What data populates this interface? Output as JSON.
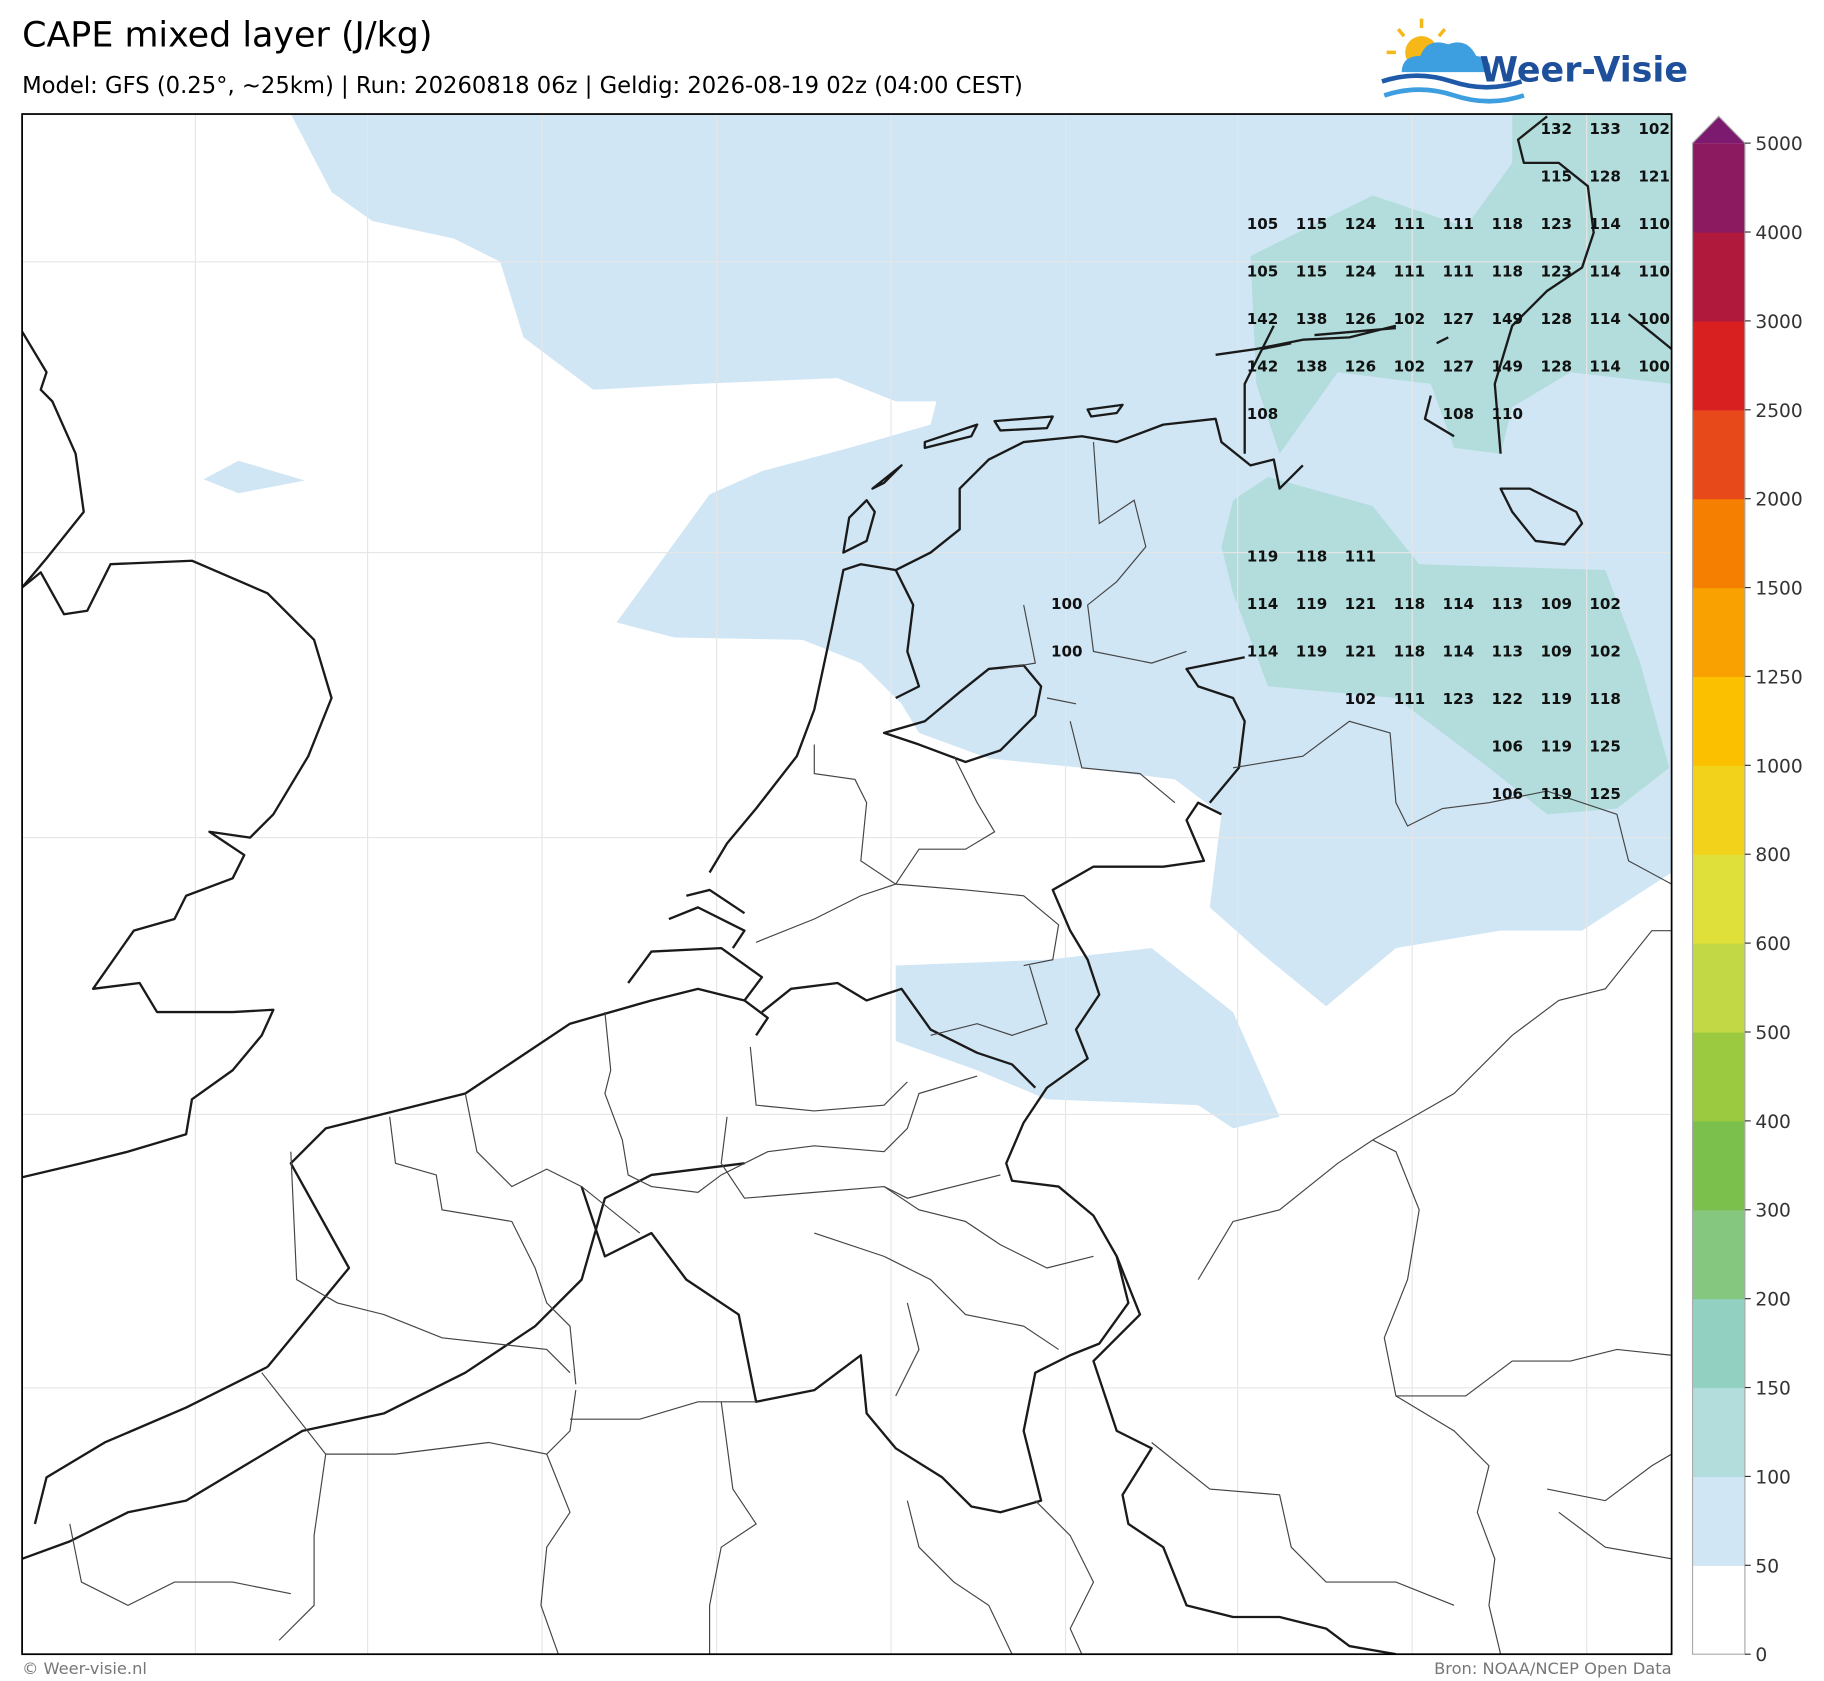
{
  "header": {
    "title": "CAPE mixed layer (J/kg)",
    "subtitle": "Model: GFS (0.25°, ~25km)  |  Run: 20260818 06z  |  Geldig: 2026-08-19 02z (04:00 CEST)"
  },
  "logo": {
    "text": "Weer-Visie"
  },
  "colorbar": {
    "levels": [
      0,
      50,
      100,
      150,
      200,
      300,
      400,
      500,
      600,
      800,
      1000,
      1250,
      1500,
      2000,
      2500,
      3000,
      4000,
      5000
    ],
    "colors": [
      "#ffffff",
      "#d0e6f5",
      "#b2dddc",
      "#92d1c2",
      "#86c780",
      "#7bbf4c",
      "#9bc93f",
      "#c2d945",
      "#dfe03a",
      "#f2d21b",
      "#fbc100",
      "#f8a100",
      "#f57f00",
      "#e7491a",
      "#d7201f",
      "#b0193b",
      "#8c1a60"
    ],
    "extend_color": "#7b1a6e"
  },
  "value_labels": {
    "rows": [
      [
        null,
        null,
        null,
        null,
        null,
        null,
        null,
        null,
        null,
        null,
        132,
        133,
        102
      ],
      [
        null,
        null,
        null,
        null,
        null,
        null,
        null,
        null,
        null,
        null,
        115,
        128,
        121
      ],
      [
        null,
        null,
        null,
        null,
        105,
        115,
        124,
        111,
        111,
        118,
        123,
        114,
        110
      ],
      [
        null,
        null,
        null,
        null,
        105,
        115,
        124,
        111,
        111,
        118,
        123,
        114,
        110
      ],
      [
        null,
        null,
        null,
        null,
        142,
        138,
        126,
        102,
        127,
        149,
        128,
        114,
        100
      ],
      [
        null,
        null,
        null,
        null,
        142,
        138,
        126,
        102,
        127,
        149,
        128,
        114,
        100
      ],
      [
        null,
        null,
        null,
        null,
        108,
        null,
        null,
        null,
        108,
        110,
        null,
        null,
        null
      ],
      [
        null,
        null,
        null,
        null,
        null,
        null,
        null,
        null,
        null,
        null,
        null,
        null,
        null
      ],
      [
        null,
        null,
        null,
        null,
        null,
        null,
        null,
        null,
        null,
        null,
        null,
        null,
        null
      ],
      [
        null,
        null,
        null,
        null,
        119,
        118,
        111,
        null,
        null,
        null,
        null,
        null,
        null
      ],
      [
        100,
        null,
        null,
        null,
        114,
        119,
        121,
        118,
        114,
        113,
        109,
        102,
        null
      ],
      [
        100,
        null,
        null,
        null,
        114,
        119,
        121,
        118,
        114,
        113,
        109,
        102,
        null
      ],
      [
        null,
        null,
        null,
        null,
        null,
        null,
        102,
        111,
        123,
        122,
        119,
        118,
        null
      ],
      [
        null,
        null,
        null,
        null,
        null,
        null,
        null,
        null,
        null,
        106,
        119,
        125,
        null
      ],
      [
        null,
        null,
        null,
        null,
        null,
        null,
        null,
        null,
        null,
        106,
        119,
        125,
        null
      ]
    ]
  },
  "footer": {
    "left": "© Weer-visie.nl",
    "right": "Bron: NOAA/NCEP Open Data"
  }
}
